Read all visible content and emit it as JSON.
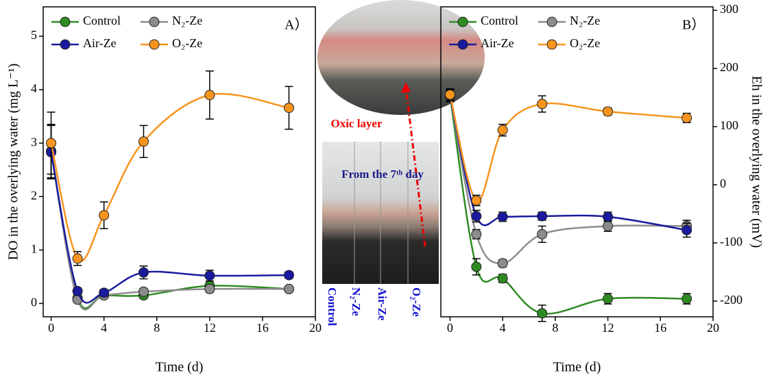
{
  "chart_data": [
    {
      "type": "line",
      "panel": "A）",
      "xlabel": "Time (d)",
      "ylabel": "DO in the overlying water (mg L⁻¹)",
      "yaxis_side": "left",
      "legend": "upper left",
      "x": [
        0,
        2,
        4,
        7,
        12,
        18
      ],
      "xlim": [
        -0.6,
        20
      ],
      "xticks": [
        0,
        4,
        8,
        12,
        16,
        20
      ],
      "ylim": [
        -0.25,
        5.55
      ],
      "yticks": [
        0,
        1,
        2,
        3,
        4,
        5
      ],
      "series": [
        {
          "name": "Control",
          "color": "#2e8b22",
          "values": [
            2.85,
            0.1,
            0.15,
            0.15,
            0.33,
            0.27
          ],
          "errors": [
            0.5,
            0.05,
            0.05,
            0.06,
            0.06,
            0.05
          ]
        },
        {
          "name": "N₂-Ze",
          "color": "#8c8c8c",
          "values": [
            2.85,
            0.07,
            0.15,
            0.22,
            0.27,
            0.27
          ],
          "errors": [
            0.5,
            0.05,
            0.05,
            0.06,
            0.06,
            0.05
          ]
        },
        {
          "name": "Air-Ze",
          "color": "#1a1aa0",
          "values": [
            2.83,
            0.23,
            0.2,
            0.58,
            0.52,
            0.53
          ],
          "errors": [
            0.5,
            0.06,
            0.06,
            0.12,
            0.1,
            0.06
          ]
        },
        {
          "name": "O₂-Ze",
          "color": "#f7941d",
          "values": [
            3.0,
            0.84,
            1.65,
            3.03,
            3.9,
            3.66
          ],
          "errors": [
            0.58,
            0.13,
            0.25,
            0.3,
            0.45,
            0.4
          ]
        }
      ]
    },
    {
      "type": "line",
      "panel": "B）",
      "xlabel": "Time (d)",
      "ylabel": "Eh in the overlying water (mV)",
      "yaxis_side": "right",
      "legend": "upper left",
      "x": [
        0,
        2,
        4,
        7,
        12,
        18
      ],
      "xlim": [
        -0.7,
        20
      ],
      "xticks": [
        0,
        4,
        8,
        12,
        16,
        20
      ],
      "ylim": [
        -227,
        306
      ],
      "yticks": [
        -200,
        -100,
        0,
        100,
        200,
        300
      ],
      "series": [
        {
          "name": "Control",
          "color": "#2e8b22",
          "values": [
            153,
            -141,
            -161,
            -221,
            -196,
            -196
          ],
          "errors": [
            10,
            14,
            7,
            14,
            9,
            9
          ]
        },
        {
          "name": "N₂-Ze",
          "color": "#8c8c8c",
          "values": [
            153,
            -85,
            -135,
            -85,
            -71,
            -71
          ],
          "errors": [
            10,
            8,
            6,
            14,
            9,
            10
          ]
        },
        {
          "name": "Air-Ze",
          "color": "#1a1aa0",
          "values": [
            153,
            -54,
            -55,
            -54,
            -55,
            -78
          ],
          "errors": [
            10,
            10,
            8,
            7,
            8,
            12
          ]
        },
        {
          "name": "O₂-Ze",
          "color": "#f7941d",
          "values": [
            155,
            -27,
            94,
            139,
            126,
            115
          ],
          "errors": [
            10,
            9,
            10,
            14,
            6,
            8
          ]
        }
      ]
    }
  ],
  "photo": {
    "top_label": "Oxic layer",
    "bottom_label": "From the 7ᵗʰ day",
    "columns": [
      "Control",
      "N₂-Ze",
      "Air-Ze",
      "O₂-Ze"
    ]
  }
}
